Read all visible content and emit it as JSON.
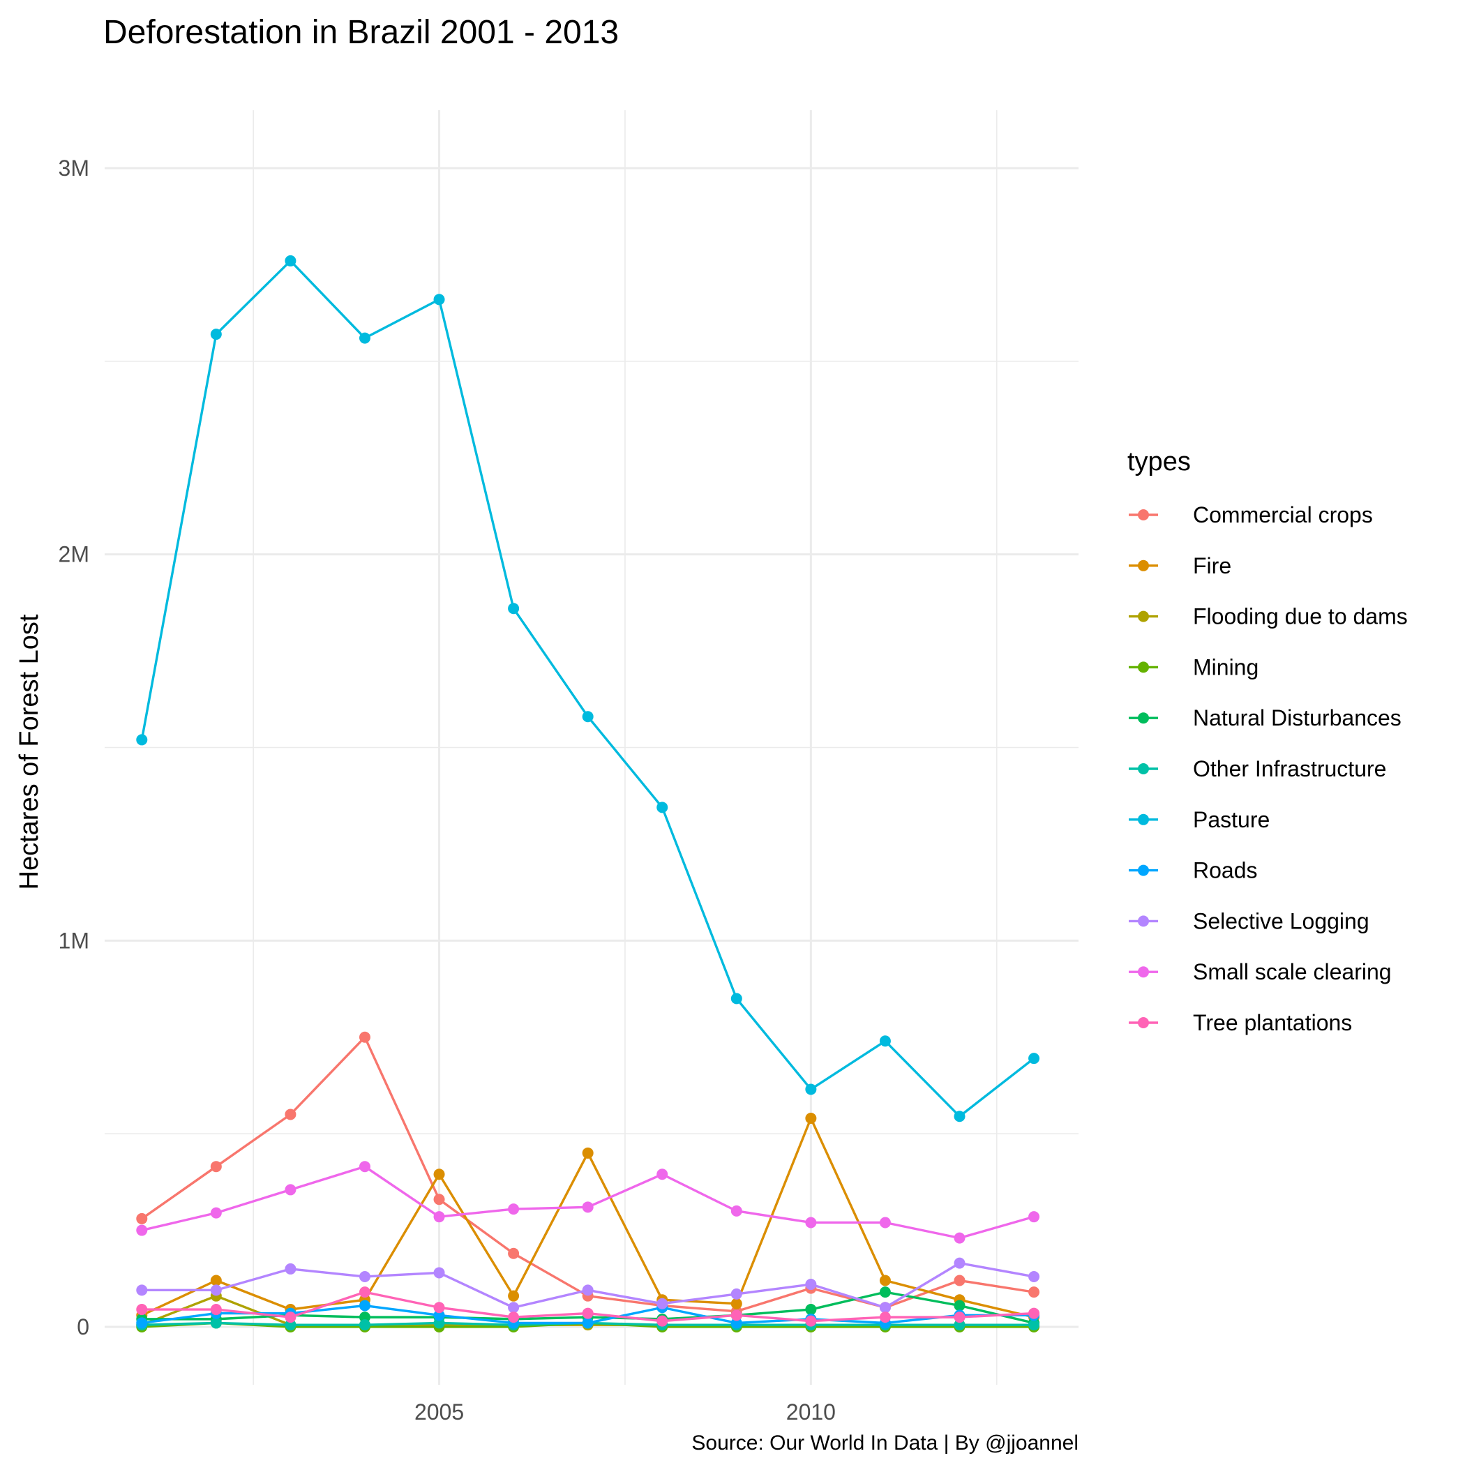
{
  "chart_data": {
    "type": "line",
    "title": "Deforestation in Brazil 2001 - 2013",
    "ylabel": "Hectares of Forest Lost",
    "xlabel": "",
    "caption": "Source: Our World In Data | By @jjoannel",
    "xlim": [
      2000.5,
      2013.6
    ],
    "ylim": [
      -150000,
      3150000
    ],
    "x_ticks": [
      2005,
      2010
    ],
    "x_tick_labels": [
      "2005",
      "2010"
    ],
    "y_ticks": [
      0,
      1000000,
      2000000,
      3000000
    ],
    "y_tick_labels": [
      "0",
      "1M",
      "2M",
      "3M"
    ],
    "grid": true,
    "legend": {
      "title": "types",
      "position": "right"
    },
    "x": [
      2001,
      2002,
      2003,
      2004,
      2005,
      2006,
      2007,
      2008,
      2009,
      2010,
      2011,
      2012,
      2013
    ],
    "series": [
      {
        "name": "Commercial crops",
        "color": "#F8766D",
        "values": [
          280000,
          415000,
          550000,
          750000,
          330000,
          190000,
          80000,
          55000,
          40000,
          100000,
          50000,
          120000,
          90000
        ]
      },
      {
        "name": "Fire",
        "color": "#DB8E00",
        "values": [
          30000,
          120000,
          45000,
          70000,
          395000,
          80000,
          450000,
          70000,
          60000,
          540000,
          120000,
          70000,
          25000
        ]
      },
      {
        "name": "Flooding due to dams",
        "color": "#AEA200",
        "values": [
          5000,
          80000,
          5000,
          5000,
          5000,
          5000,
          5000,
          5000,
          5000,
          5000,
          5000,
          5000,
          5000
        ]
      },
      {
        "name": "Mining",
        "color": "#64B200",
        "values": [
          0,
          10000,
          0,
          0,
          0,
          0,
          10000,
          0,
          0,
          0,
          0,
          0,
          0
        ]
      },
      {
        "name": "Natural Disturbances",
        "color": "#00BD5C",
        "values": [
          20000,
          20000,
          30000,
          25000,
          25000,
          20000,
          25000,
          20000,
          30000,
          45000,
          90000,
          55000,
          10000
        ]
      },
      {
        "name": "Other Infrastructure",
        "color": "#00C1A7",
        "values": [
          5000,
          10000,
          5000,
          5000,
          10000,
          5000,
          10000,
          5000,
          5000,
          5000,
          5000,
          5000,
          5000
        ]
      },
      {
        "name": "Pasture",
        "color": "#00BADE",
        "values": [
          1520000,
          2570000,
          2760000,
          2560000,
          2660000,
          1860000,
          1580000,
          1345000,
          850000,
          615000,
          740000,
          545000,
          695000
        ]
      },
      {
        "name": "Roads",
        "color": "#00A6FF",
        "values": [
          10000,
          35000,
          35000,
          55000,
          30000,
          10000,
          10000,
          50000,
          10000,
          20000,
          10000,
          30000,
          30000
        ]
      },
      {
        "name": "Selective Logging",
        "color": "#B385FF",
        "values": [
          95000,
          95000,
          150000,
          130000,
          140000,
          50000,
          95000,
          60000,
          85000,
          110000,
          50000,
          165000,
          130000
        ]
      },
      {
        "name": "Small scale clearing",
        "color": "#EF67EB",
        "values": [
          250000,
          295000,
          355000,
          415000,
          285000,
          305000,
          310000,
          395000,
          300000,
          270000,
          270000,
          230000,
          285000
        ]
      },
      {
        "name": "Tree plantations",
        "color": "#FF63B6",
        "values": [
          45000,
          45000,
          25000,
          90000,
          50000,
          25000,
          35000,
          15000,
          30000,
          15000,
          25000,
          25000,
          35000
        ]
      }
    ]
  }
}
